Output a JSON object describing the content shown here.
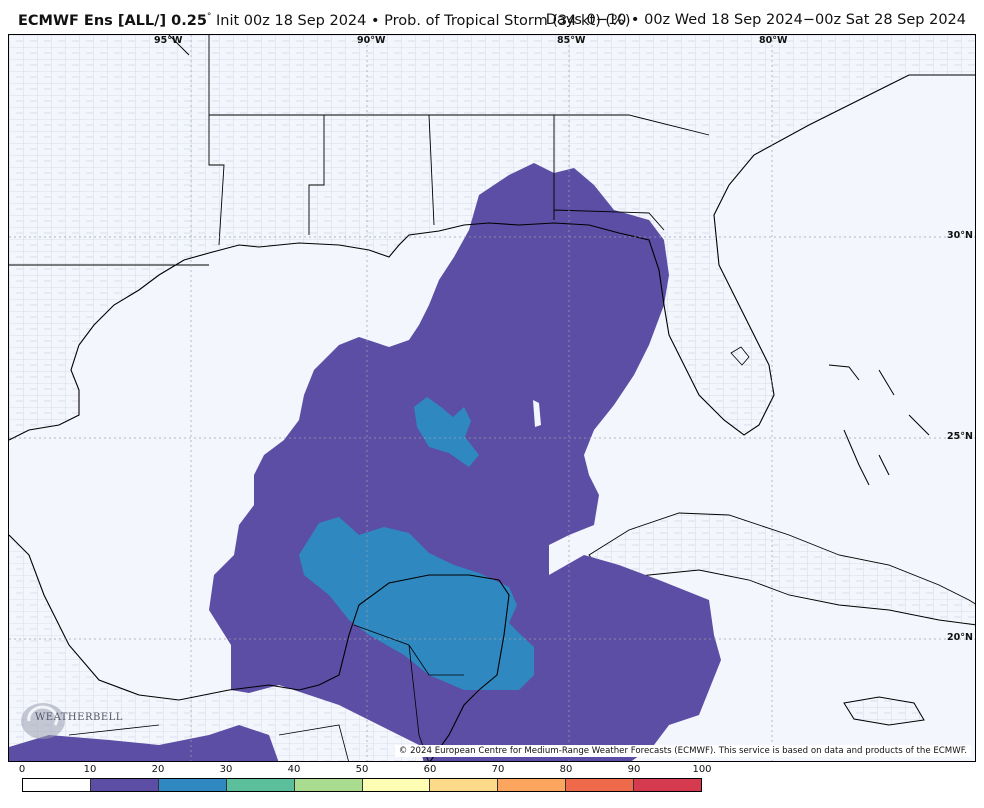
{
  "header": {
    "title_bold": "ECMWF Ens [ALL/] 0.25",
    "degree": "°",
    "title_rest": " Init 00z 18 Sep 2024 • Prob. of Tropical Storm (34 kt) (%)",
    "right": "Days 0−10 • 00z Wed 18 Sep 2024−00z Sat 28 Sep 2024"
  },
  "map": {
    "longitude_labels": [
      "95°W",
      "90°W",
      "85°W",
      "80°W"
    ],
    "latitude_labels": [
      "30°N",
      "25°N",
      "20°N"
    ],
    "credit": "© 2024 European Centre for Medium-Range Weather Forecasts (ECMWF). This service is based on data and products of the ECMWF.",
    "logo_text": "WEATHERBELL",
    "colors": {
      "ocean": "#f3f6fd",
      "prob_10_20": "#5b4ea4",
      "prob_20_30": "#2f89c0",
      "county_lines": "#b9bccd",
      "coast": "#000000"
    }
  },
  "colorbar": {
    "tick_labels": [
      "0",
      "10",
      "20",
      "30",
      "40",
      "50",
      "60",
      "70",
      "80",
      "90",
      "100"
    ],
    "colors": [
      "#ffffff",
      "#5b4ea4",
      "#2f89c0",
      "#5cbf9b",
      "#a9dc8e",
      "#fdfdb4",
      "#fdd98a",
      "#fba55f",
      "#ef6a4a",
      "#d53a4f",
      "#9e0142"
    ]
  }
}
